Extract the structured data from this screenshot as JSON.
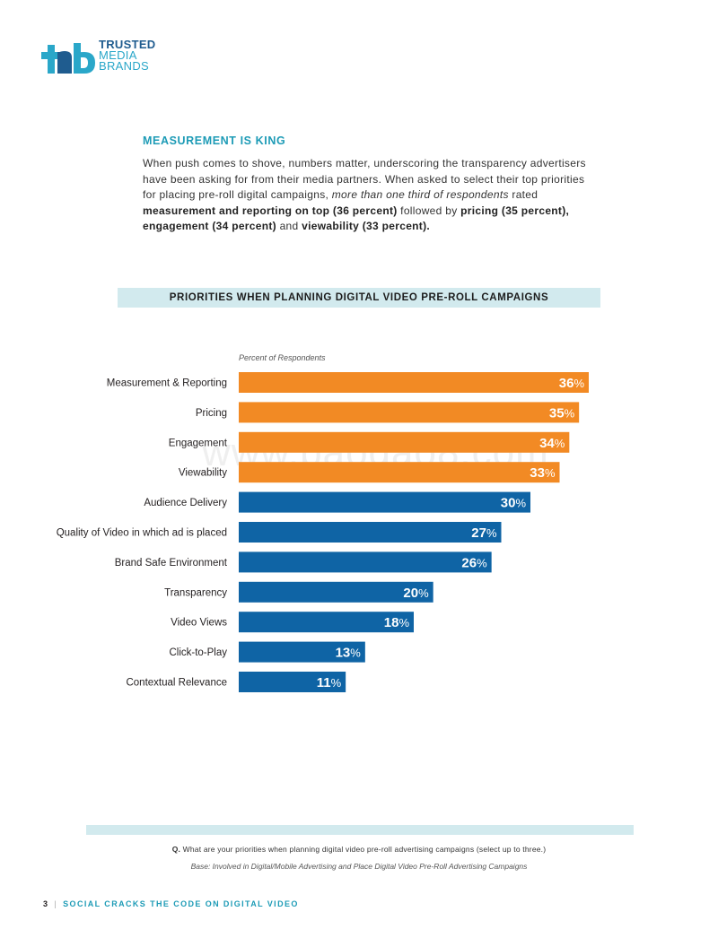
{
  "header": {
    "logo_line1": "TRUSTED",
    "logo_line2": "MEDIA",
    "logo_line3": "BRANDS"
  },
  "section": {
    "title": "MEASUREMENT IS KING",
    "p1": "When push comes to shove, numbers matter, underscoring the transparency advertisers have been asking for from their media partners. When asked to select their top priorities for placing pre-roll digital campaigns, ",
    "p_italic": "more than one third of respondents",
    "p2": " rated ",
    "p_bold1": "measurement and reporting on top (36 percent)",
    "p3": " followed by ",
    "p_bold2": "pricing (35 percent), engagement (34 percent)",
    "p4": " and ",
    "p_bold3": "viewability (33 percent)."
  },
  "chart_data": {
    "type": "bar",
    "orientation": "horizontal",
    "title": "PRIORITIES WHEN PLANNING DIGITAL VIDEO PRE-ROLL CAMPAIGNS",
    "xlabel": "Percent of Respondents",
    "ylabel": "",
    "xlim": [
      0,
      36
    ],
    "value_suffix": "%",
    "categories": [
      "Measurement & Reporting",
      "Pricing",
      "Engagement",
      "Viewability",
      "Audience Delivery",
      "Quality of Video in which ad is placed",
      "Brand Safe Environment",
      "Transparency",
      "Video Views",
      "Click-to-Play",
      "Contextual Relevance"
    ],
    "values": [
      36,
      35,
      34,
      33,
      30,
      27,
      26,
      20,
      18,
      13,
      11
    ],
    "bar_colors": [
      "#f28a24",
      "#f28a24",
      "#f28a24",
      "#f28a24",
      "#0f64a5",
      "#0f64a5",
      "#0f64a5",
      "#0f64a5",
      "#0f64a5",
      "#0f64a5",
      "#0f64a5"
    ],
    "grid": false,
    "legend": "none"
  },
  "watermark": "www.baogao8.com",
  "footer": {
    "question_label": "Q.",
    "question_text": " What are your priorities when planning digital video pre-roll advertising campaigns (select up to three.)",
    "base": "Base: Involved in Digital/Mobile Advertising and Place Digital Video Pre-Roll Advertising Campaigns",
    "page_number": "3",
    "separator": "|",
    "publication": "SOCIAL CRACKS THE CODE ON DIGITAL VIDEO"
  },
  "colors": {
    "accent_teal": "#1d9bb6",
    "band": "#d2eaee",
    "orange": "#f28a24",
    "blue": "#0f64a5"
  }
}
